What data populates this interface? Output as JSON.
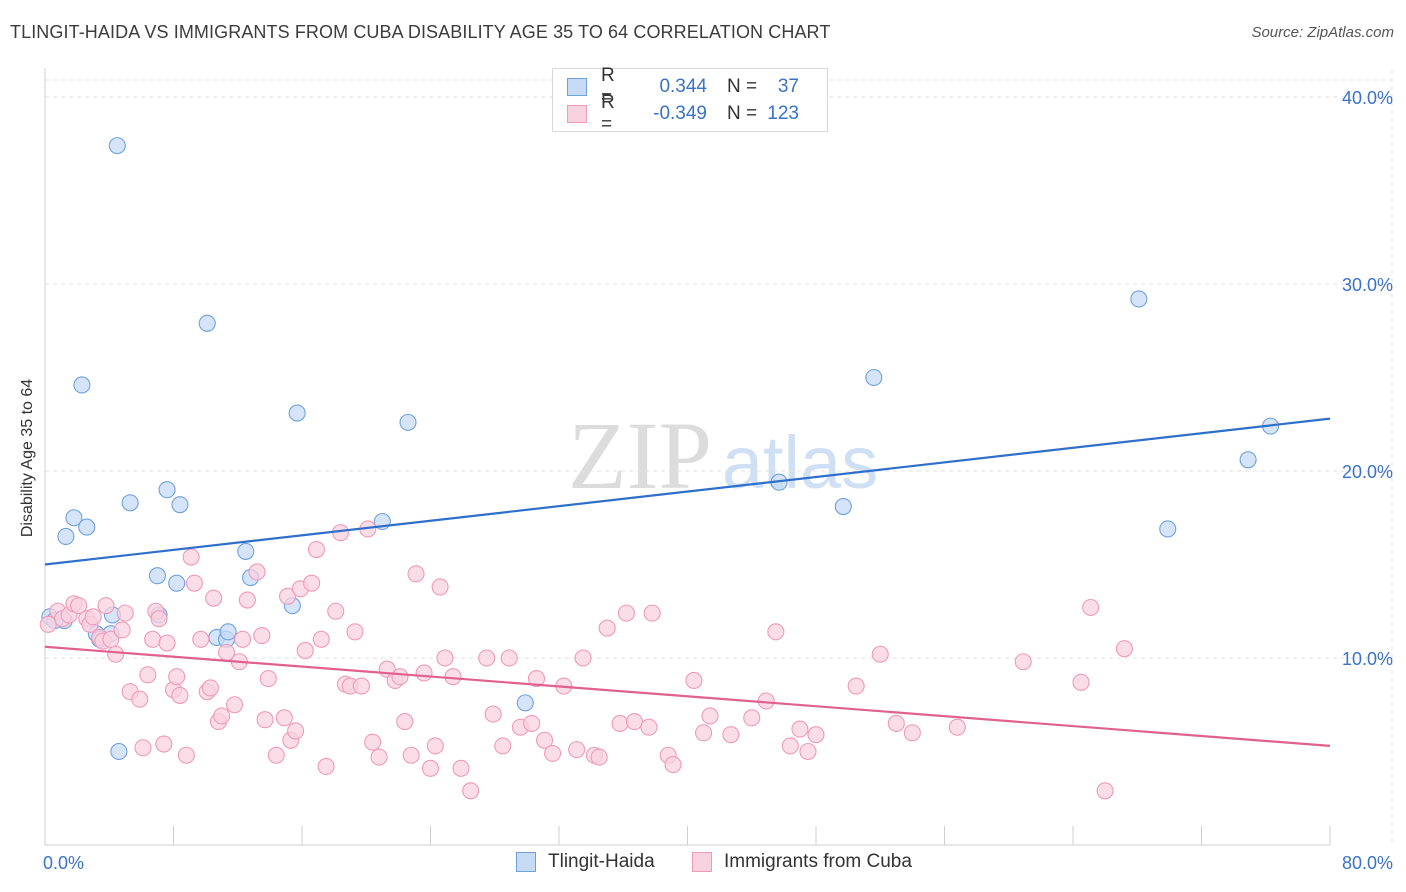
{
  "title": "TLINGIT-HAIDA VS IMMIGRANTS FROM CUBA DISABILITY AGE 35 TO 64 CORRELATION CHART",
  "source": "Source: ZipAtlas.com",
  "watermark": {
    "zip": "ZIP",
    "atlas": "atlas"
  },
  "legend": {
    "r_label": "R =",
    "n_label": "N =",
    "rows": [
      {
        "r": "0.344",
        "n": "37"
      },
      {
        "r": "-0.349",
        "n": "123"
      }
    ]
  },
  "chart_data": {
    "type": "scatter",
    "title": "TLINGIT-HAIDA VS IMMIGRANTS FROM CUBA DISABILITY AGE 35 TO 64 CORRELATION CHART",
    "xlabel": "",
    "ylabel": "Disability Age 35 to 64",
    "xlim": [
      0,
      80
    ],
    "ylim": [
      0,
      40
    ],
    "x_tick_labels": [
      "0.0%",
      "80.0%"
    ],
    "y_tick_labels": [
      "10.0%",
      "20.0%",
      "30.0%",
      "40.0%"
    ],
    "y_ticks": [
      10,
      20,
      30,
      40
    ],
    "grid": true,
    "legend_position": "bottom",
    "series": [
      {
        "name": "Tlingit-Haida",
        "color": "#6fa1e0",
        "fill": "#c7dbf5",
        "line_color": "#2f6fcc",
        "trend": {
          "x": [
            0,
            80
          ],
          "y": [
            15.0,
            22.8
          ]
        },
        "points": [
          [
            0.3,
            12.2
          ],
          [
            1.2,
            12.0
          ],
          [
            1.3,
            16.5
          ],
          [
            1.8,
            17.5
          ],
          [
            2.3,
            24.6
          ],
          [
            2.6,
            17.0
          ],
          [
            3.2,
            11.3
          ],
          [
            3.4,
            11.0
          ],
          [
            4.1,
            11.3
          ],
          [
            4.2,
            12.3
          ],
          [
            4.5,
            37.4
          ],
          [
            4.6,
            5.0
          ],
          [
            5.3,
            18.3
          ],
          [
            7.0,
            14.4
          ],
          [
            7.1,
            12.3
          ],
          [
            7.6,
            19.0
          ],
          [
            8.2,
            14.0
          ],
          [
            8.4,
            18.2
          ],
          [
            10.1,
            27.9
          ],
          [
            10.7,
            11.1
          ],
          [
            11.3,
            11.0
          ],
          [
            11.4,
            11.4
          ],
          [
            12.5,
            15.7
          ],
          [
            12.8,
            14.3
          ],
          [
            15.4,
            12.8
          ],
          [
            15.7,
            23.1
          ],
          [
            21.0,
            17.3
          ],
          [
            22.6,
            22.6
          ],
          [
            29.9,
            7.6
          ],
          [
            45.7,
            19.4
          ],
          [
            49.7,
            18.1
          ],
          [
            51.6,
            25.0
          ],
          [
            68.1,
            29.2
          ],
          [
            69.9,
            16.9
          ],
          [
            74.9,
            20.6
          ],
          [
            76.3,
            22.4
          ],
          [
            0.6,
            12.0
          ]
        ]
      },
      {
        "name": "Immigrants from Cuba",
        "color": "#ef9ab8",
        "fill": "#f9d2df",
        "line_color": "#e0608e",
        "trend": {
          "x": [
            0,
            80
          ],
          "y": [
            10.6,
            5.3
          ]
        },
        "points": [
          [
            0.2,
            11.8
          ],
          [
            0.8,
            12.5
          ],
          [
            1.1,
            12.1
          ],
          [
            1.5,
            12.3
          ],
          [
            1.8,
            12.9
          ],
          [
            2.1,
            12.8
          ],
          [
            2.6,
            12.1
          ],
          [
            2.8,
            11.8
          ],
          [
            3.0,
            12.2
          ],
          [
            3.4,
            11.1
          ],
          [
            3.6,
            10.9
          ],
          [
            3.8,
            12.8
          ],
          [
            4.1,
            11.0
          ],
          [
            4.4,
            10.2
          ],
          [
            4.8,
            11.5
          ],
          [
            5.0,
            12.4
          ],
          [
            5.3,
            8.2
          ],
          [
            5.9,
            7.8
          ],
          [
            6.1,
            5.2
          ],
          [
            6.4,
            9.1
          ],
          [
            6.7,
            11.0
          ],
          [
            6.9,
            12.5
          ],
          [
            7.1,
            12.1
          ],
          [
            7.4,
            5.4
          ],
          [
            7.6,
            10.8
          ],
          [
            8.0,
            8.3
          ],
          [
            8.2,
            9.0
          ],
          [
            8.4,
            8.0
          ],
          [
            8.8,
            4.8
          ],
          [
            9.1,
            15.4
          ],
          [
            9.3,
            14.0
          ],
          [
            9.7,
            11.0
          ],
          [
            10.1,
            8.2
          ],
          [
            10.3,
            8.4
          ],
          [
            10.5,
            13.2
          ],
          [
            10.8,
            6.6
          ],
          [
            11.0,
            6.9
          ],
          [
            11.3,
            10.3
          ],
          [
            11.8,
            7.5
          ],
          [
            12.1,
            9.8
          ],
          [
            12.3,
            11.0
          ],
          [
            12.6,
            13.1
          ],
          [
            13.2,
            14.6
          ],
          [
            13.5,
            11.2
          ],
          [
            13.7,
            6.7
          ],
          [
            13.9,
            8.9
          ],
          [
            14.4,
            4.8
          ],
          [
            14.9,
            6.8
          ],
          [
            15.1,
            13.3
          ],
          [
            15.3,
            5.6
          ],
          [
            15.6,
            6.1
          ],
          [
            15.9,
            13.7
          ],
          [
            16.2,
            10.4
          ],
          [
            16.6,
            14.0
          ],
          [
            16.9,
            15.8
          ],
          [
            17.2,
            11.0
          ],
          [
            17.5,
            4.2
          ],
          [
            18.1,
            12.5
          ],
          [
            18.4,
            16.7
          ],
          [
            18.7,
            8.6
          ],
          [
            19.0,
            8.5
          ],
          [
            19.3,
            11.4
          ],
          [
            19.7,
            8.5
          ],
          [
            20.1,
            16.9
          ],
          [
            20.4,
            5.5
          ],
          [
            20.8,
            4.7
          ],
          [
            21.3,
            9.4
          ],
          [
            21.8,
            8.8
          ],
          [
            22.1,
            9.0
          ],
          [
            22.4,
            6.6
          ],
          [
            22.8,
            4.8
          ],
          [
            23.1,
            14.5
          ],
          [
            23.6,
            9.2
          ],
          [
            24.0,
            4.1
          ],
          [
            24.3,
            5.3
          ],
          [
            24.6,
            13.8
          ],
          [
            24.9,
            10.0
          ],
          [
            25.4,
            9.0
          ],
          [
            25.9,
            4.1
          ],
          [
            26.5,
            2.9
          ],
          [
            27.5,
            10.0
          ],
          [
            27.9,
            7.0
          ],
          [
            28.5,
            5.3
          ],
          [
            28.9,
            10.0
          ],
          [
            29.6,
            6.3
          ],
          [
            30.3,
            6.5
          ],
          [
            30.6,
            8.9
          ],
          [
            31.1,
            5.6
          ],
          [
            31.6,
            4.9
          ],
          [
            32.3,
            8.5
          ],
          [
            33.1,
            5.1
          ],
          [
            33.5,
            10.0
          ],
          [
            34.2,
            4.8
          ],
          [
            34.5,
            4.7
          ],
          [
            35.0,
            11.6
          ],
          [
            35.8,
            6.5
          ],
          [
            36.2,
            12.4
          ],
          [
            36.7,
            6.6
          ],
          [
            37.6,
            6.3
          ],
          [
            37.8,
            12.4
          ],
          [
            38.8,
            4.8
          ],
          [
            39.1,
            4.3
          ],
          [
            40.4,
            8.8
          ],
          [
            41.0,
            6.0
          ],
          [
            41.4,
            6.9
          ],
          [
            42.7,
            5.9
          ],
          [
            44.0,
            6.8
          ],
          [
            44.9,
            7.7
          ],
          [
            45.5,
            11.4
          ],
          [
            46.4,
            5.3
          ],
          [
            47.0,
            6.2
          ],
          [
            47.5,
            5.0
          ],
          [
            48.0,
            5.9
          ],
          [
            50.5,
            8.5
          ],
          [
            52.0,
            10.2
          ],
          [
            53.0,
            6.5
          ],
          [
            54.0,
            6.0
          ],
          [
            56.8,
            6.3
          ],
          [
            60.9,
            9.8
          ],
          [
            64.5,
            8.7
          ],
          [
            65.1,
            12.7
          ],
          [
            67.2,
            10.5
          ],
          [
            66.0,
            2.9
          ]
        ]
      }
    ]
  },
  "bottom_legend": [
    {
      "label": "Tlingit-Haida"
    },
    {
      "label": "Immigrants from Cuba"
    }
  ]
}
